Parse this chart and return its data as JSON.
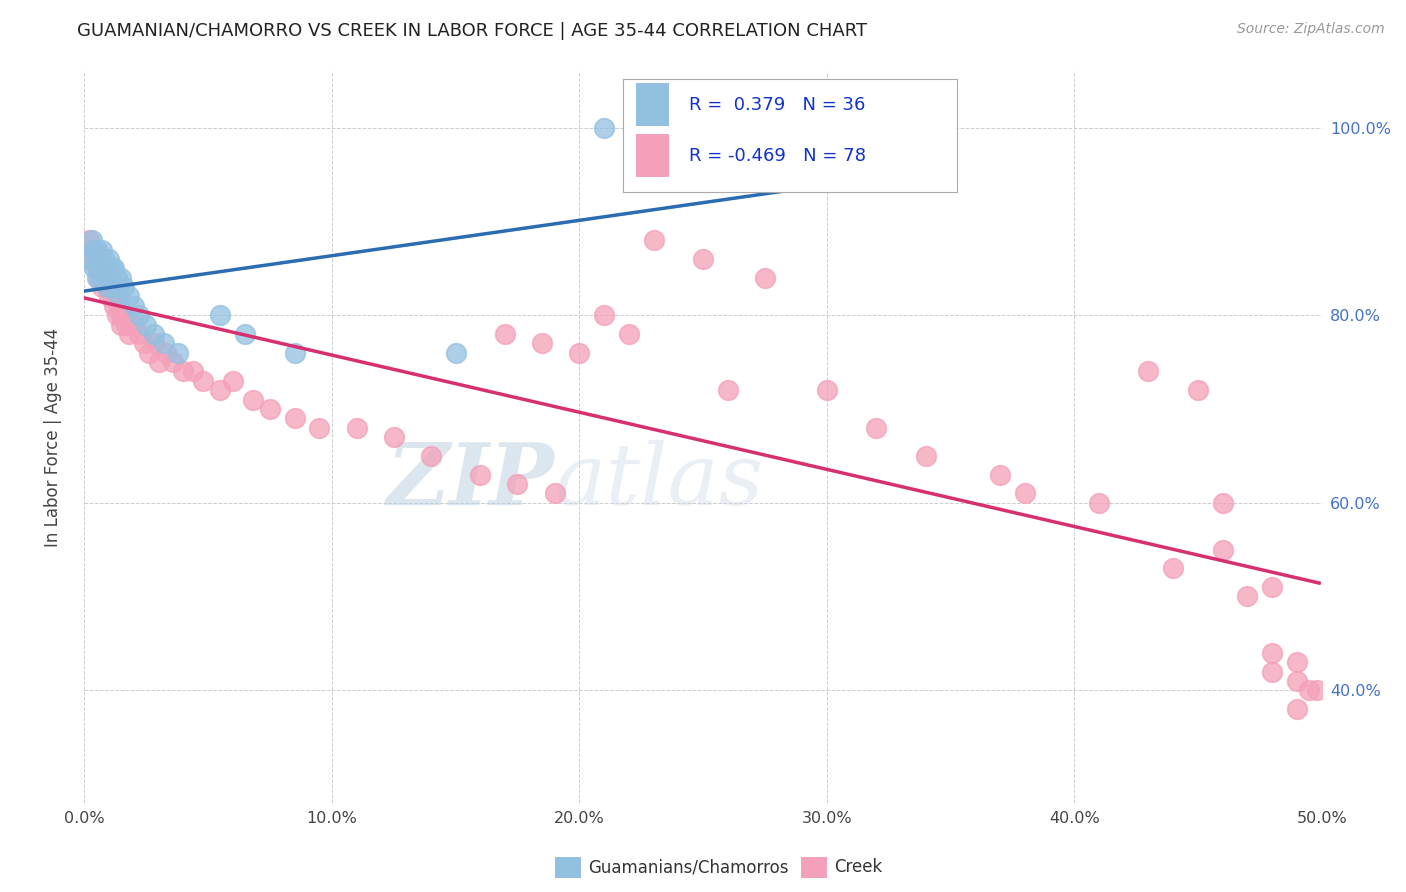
{
  "title": "GUAMANIAN/CHAMORRO VS CREEK IN LABOR FORCE | AGE 35-44 CORRELATION CHART",
  "source": "Source: ZipAtlas.com",
  "ylabel": "In Labor Force | Age 35-44",
  "xlim": [
    0.0,
    0.5
  ],
  "ylim": [
    0.28,
    1.06
  ],
  "xtick_vals": [
    0.0,
    0.1,
    0.2,
    0.3,
    0.4,
    0.5
  ],
  "xtick_labels": [
    "0.0%",
    "10.0%",
    "20.0%",
    "30.0%",
    "40.0%",
    "50.0%"
  ],
  "ytick_vals": [
    0.4,
    0.6,
    0.8,
    1.0
  ],
  "ytick_labels": [
    "40.0%",
    "60.0%",
    "80.0%",
    "100.0%"
  ],
  "color_blue": "#92c0e0",
  "color_pink": "#f4a0b8",
  "trendline_blue": "#2b6cb0",
  "trendline_pink": "#d63070",
  "legend_r1": "0.379",
  "legend_n1": "36",
  "legend_r2": "-0.469",
  "legend_n2": "78",
  "label_blue": "Guamanians/Chamorros",
  "label_pink": "Creek",
  "blue_x": [
    0.002,
    0.003,
    0.004,
    0.004,
    0.005,
    0.005,
    0.006,
    0.006,
    0.007,
    0.007,
    0.008,
    0.008,
    0.009,
    0.009,
    0.01,
    0.01,
    0.011,
    0.012,
    0.012,
    0.013,
    0.014,
    0.015,
    0.016,
    0.018,
    0.02,
    0.022,
    0.025,
    0.028,
    0.032,
    0.038,
    0.055,
    0.065,
    0.085,
    0.15,
    0.21,
    0.235
  ],
  "blue_y": [
    0.86,
    0.88,
    0.85,
    0.87,
    0.84,
    0.87,
    0.86,
    0.85,
    0.87,
    0.84,
    0.85,
    0.86,
    0.83,
    0.85,
    0.84,
    0.86,
    0.85,
    0.83,
    0.85,
    0.84,
    0.82,
    0.84,
    0.83,
    0.82,
    0.81,
    0.8,
    0.79,
    0.78,
    0.77,
    0.76,
    0.8,
    0.78,
    0.76,
    0.76,
    1.0,
    1.0
  ],
  "pink_x": [
    0.002,
    0.003,
    0.004,
    0.005,
    0.005,
    0.006,
    0.006,
    0.007,
    0.007,
    0.008,
    0.008,
    0.009,
    0.009,
    0.01,
    0.01,
    0.011,
    0.011,
    0.012,
    0.013,
    0.013,
    0.014,
    0.015,
    0.015,
    0.016,
    0.017,
    0.018,
    0.02,
    0.022,
    0.024,
    0.026,
    0.028,
    0.03,
    0.033,
    0.036,
    0.04,
    0.044,
    0.048,
    0.055,
    0.06,
    0.068,
    0.075,
    0.085,
    0.095,
    0.11,
    0.125,
    0.14,
    0.16,
    0.175,
    0.19,
    0.21,
    0.23,
    0.25,
    0.275,
    0.3,
    0.17,
    0.185,
    0.2,
    0.22,
    0.26,
    0.32,
    0.34,
    0.37,
    0.38,
    0.41,
    0.44,
    0.46,
    0.47,
    0.48,
    0.49,
    0.43,
    0.45,
    0.46,
    0.48,
    0.49,
    0.48,
    0.49,
    0.495,
    0.498
  ],
  "pink_y": [
    0.88,
    0.87,
    0.86,
    0.87,
    0.85,
    0.86,
    0.84,
    0.85,
    0.83,
    0.84,
    0.85,
    0.83,
    0.84,
    0.82,
    0.83,
    0.82,
    0.83,
    0.81,
    0.82,
    0.8,
    0.81,
    0.8,
    0.79,
    0.8,
    0.79,
    0.78,
    0.79,
    0.78,
    0.77,
    0.76,
    0.77,
    0.75,
    0.76,
    0.75,
    0.74,
    0.74,
    0.73,
    0.72,
    0.73,
    0.71,
    0.7,
    0.69,
    0.68,
    0.68,
    0.67,
    0.65,
    0.63,
    0.62,
    0.61,
    0.8,
    0.88,
    0.86,
    0.84,
    0.72,
    0.78,
    0.77,
    0.76,
    0.78,
    0.72,
    0.68,
    0.65,
    0.63,
    0.61,
    0.6,
    0.53,
    0.6,
    0.5,
    0.51,
    0.38,
    0.74,
    0.72,
    0.55,
    0.44,
    0.43,
    0.42,
    0.41,
    0.4,
    0.4
  ]
}
